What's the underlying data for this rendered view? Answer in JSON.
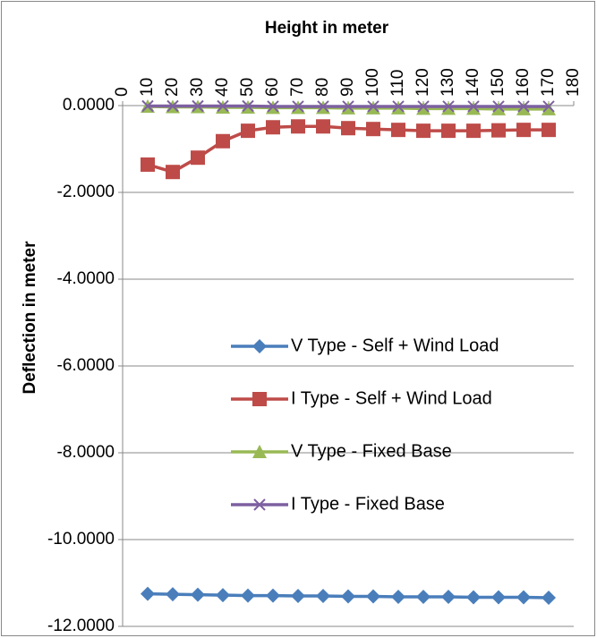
{
  "chart_data": {
    "type": "line",
    "xlabel": "Height in meter",
    "ylabel": "Deflection in meter",
    "x": [
      10,
      20,
      30,
      40,
      50,
      60,
      70,
      80,
      90,
      100,
      110,
      120,
      130,
      140,
      150,
      160,
      170
    ],
    "series": [
      {
        "name": "V Type - Self + Wind Load",
        "color": "#4a7ebb",
        "marker": "diamond",
        "values": [
          -11.25,
          -11.26,
          -11.27,
          -11.28,
          -11.29,
          -11.29,
          -11.3,
          -11.3,
          -11.31,
          -11.31,
          -11.32,
          -11.32,
          -11.32,
          -11.33,
          -11.33,
          -11.33,
          -11.34
        ]
      },
      {
        "name": "I Type - Self + Wind Load",
        "color": "#be4b48",
        "marker": "square",
        "values": [
          -1.36,
          -1.53,
          -1.2,
          -0.82,
          -0.58,
          -0.5,
          -0.48,
          -0.48,
          -0.52,
          -0.54,
          -0.56,
          -0.58,
          -0.58,
          -0.58,
          -0.57,
          -0.56,
          -0.56
        ]
      },
      {
        "name": "V Type - Fixed Base",
        "color": "#98b954",
        "marker": "triangle",
        "values": [
          -0.02,
          -0.03,
          -0.03,
          -0.04,
          -0.04,
          -0.05,
          -0.05,
          -0.05,
          -0.06,
          -0.06,
          -0.06,
          -0.07,
          -0.07,
          -0.07,
          -0.08,
          -0.08,
          -0.08
        ]
      },
      {
        "name": "I Type - Fixed Base",
        "color": "#7d60a0",
        "marker": "x",
        "values": [
          -0.01,
          -0.01,
          -0.01,
          -0.01,
          -0.01,
          -0.02,
          -0.02,
          -0.02,
          -0.02,
          -0.02,
          -0.02,
          -0.02,
          -0.02,
          -0.02,
          -0.02,
          -0.02,
          -0.02
        ]
      }
    ],
    "xlim": [
      0,
      180
    ],
    "xticks": [
      0,
      10,
      20,
      30,
      40,
      50,
      60,
      70,
      80,
      90,
      100,
      110,
      120,
      130,
      140,
      150,
      160,
      170,
      180
    ],
    "ylim": [
      -12,
      0
    ],
    "yticks": [
      {
        "value": 0,
        "label": "0.0000"
      },
      {
        "value": -2,
        "label": "-2.0000"
      },
      {
        "value": -4,
        "label": "-4.0000"
      },
      {
        "value": -6,
        "label": "-6.0000"
      },
      {
        "value": -8,
        "label": "-8.0000"
      },
      {
        "value": -10,
        "label": "-10.0000"
      },
      {
        "value": -12,
        "label": "-12.0000"
      }
    ],
    "x_axis_position": "top",
    "grid": true,
    "legend_position": "center-right"
  }
}
